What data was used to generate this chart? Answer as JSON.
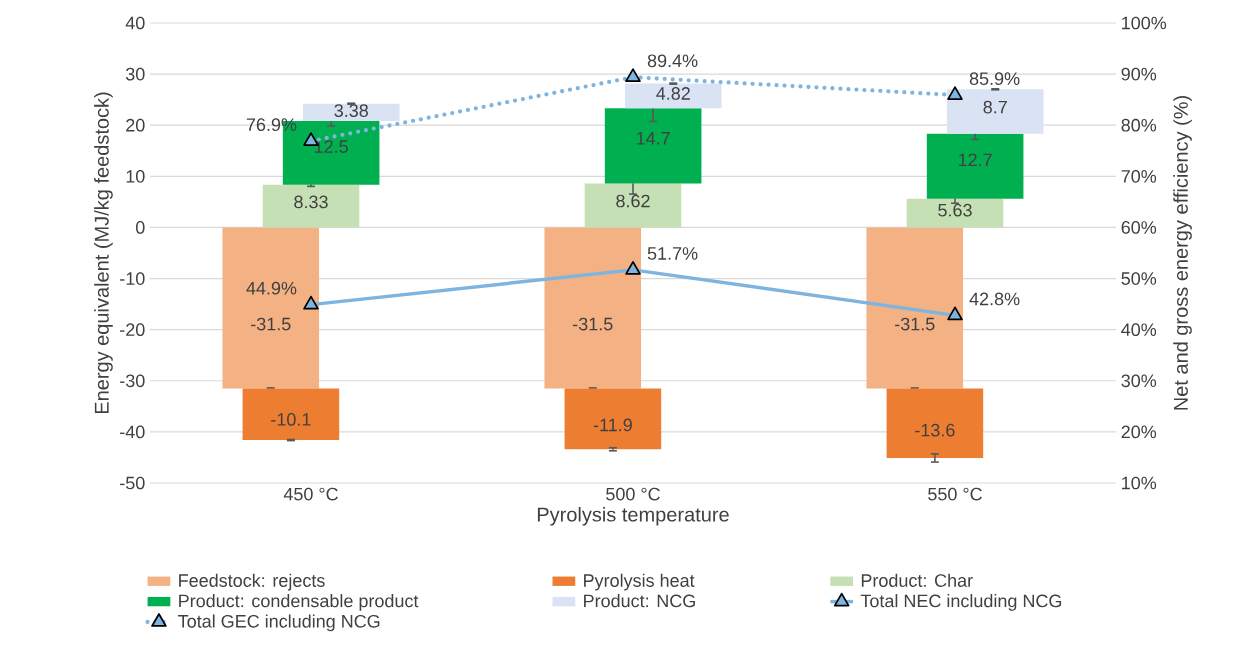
{
  "chart_data": {
    "type": "bar",
    "stacked": true,
    "categories": [
      "450 °C",
      "500 °C",
      "550 °C"
    ],
    "xlabel": "Pyrolysis temperature",
    "ylabel": "Energy equivalent (MJ/kg feedstock)",
    "y2label": "Net and gross energy efficiency (%)",
    "ylim": [
      -50,
      40
    ],
    "yticks": [
      -50,
      -40,
      -30,
      -20,
      -10,
      0,
      10,
      20,
      30,
      40
    ],
    "y2lim": [
      10,
      100
    ],
    "y2ticks": [
      {
        "value": 10,
        "label": "10%"
      },
      {
        "value": 20,
        "label": "20%"
      },
      {
        "value": 30,
        "label": "30%"
      },
      {
        "value": 40,
        "label": "40%"
      },
      {
        "value": 50,
        "label": "50%"
      },
      {
        "value": 60,
        "label": "60%"
      },
      {
        "value": 70,
        "label": "70%"
      },
      {
        "value": 80,
        "label": "80%"
      },
      {
        "value": 90,
        "label": "90%"
      },
      {
        "value": 100,
        "label": "100%"
      }
    ],
    "grid": "y",
    "legend": "bottom",
    "series": [
      {
        "name": "Feedstock: rejects",
        "color": "#f4b183",
        "values": [
          -31.5,
          -31.5,
          -31.5
        ],
        "errors": [
          0.1,
          0.1,
          0.1
        ],
        "value_labels": [
          "-31.5",
          "-31.5",
          "-31.5"
        ]
      },
      {
        "name": "Pyrolysis heat",
        "color": "#ed7d31",
        "values": [
          -10.1,
          -11.9,
          -13.6
        ],
        "errors": [
          0.1,
          0.3,
          0.8
        ],
        "value_labels": [
          "-10.1",
          "-11.9",
          "-13.6"
        ]
      },
      {
        "name": "Product: Char",
        "color": "#c5e0b4",
        "values": [
          8.33,
          8.62,
          5.63
        ],
        "errors": [
          0.3,
          2.1,
          0.9
        ],
        "value_labels": [
          "8.33",
          "8.62",
          "5.63"
        ]
      },
      {
        "name": "Product: condensable product",
        "color": "#00b050",
        "values": [
          12.5,
          14.7,
          12.7
        ],
        "errors": [
          1.0,
          2.6,
          1.1
        ],
        "value_labels": [
          "12.5",
          "14.7",
          "12.7"
        ]
      },
      {
        "name": "Product: NCG",
        "color": "#dae3f3",
        "values": [
          3.38,
          4.82,
          8.7
        ],
        "errors": [
          0.1,
          0.1,
          0.1
        ],
        "value_labels": [
          "3.38",
          "4.82",
          "8.7"
        ]
      },
      {
        "name": "Total NEC including NCG",
        "type": "line",
        "axis": "y2",
        "color": "#7eb4e0",
        "marker": "triangle",
        "line_style": "solid",
        "values": [
          44.9,
          51.7,
          42.8
        ],
        "value_labels": [
          "44.9%",
          "51.7%",
          "42.8%"
        ]
      },
      {
        "name": "Total GEC including NCG",
        "type": "line",
        "axis": "y2",
        "color": "#7eb4e0",
        "marker": "triangle",
        "line_style": "dotted",
        "values": [
          76.9,
          89.4,
          85.9
        ],
        "value_labels": [
          "76.9%",
          "89.4%",
          "85.9%"
        ]
      }
    ]
  }
}
